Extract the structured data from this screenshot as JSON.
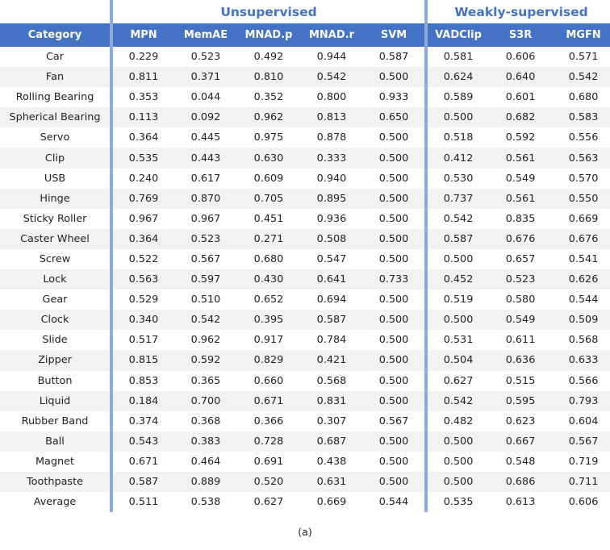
{
  "table": {
    "groups": {
      "unsupervised": "Unsupervised",
      "weakly": "Weakly-supervised"
    },
    "columns": [
      "Category",
      "MPN",
      "MemAE",
      "MNAD.p",
      "MNAD.r",
      "SVM",
      "VADClip",
      "S3R",
      "MGFN"
    ],
    "rows": [
      [
        "Car",
        "0.229",
        "0.523",
        "0.492",
        "0.944",
        "0.587",
        "0.581",
        "0.606",
        "0.571"
      ],
      [
        "Fan",
        "0.811",
        "0.371",
        "0.810",
        "0.542",
        "0.500",
        "0.624",
        "0.640",
        "0.542"
      ],
      [
        "Rolling Bearing",
        "0.353",
        "0.044",
        "0.352",
        "0.800",
        "0.933",
        "0.589",
        "0.601",
        "0.680"
      ],
      [
        "Spherical Bearing",
        "0.113",
        "0.092",
        "0.962",
        "0.813",
        "0.650",
        "0.500",
        "0.682",
        "0.583"
      ],
      [
        "Servo",
        "0.364",
        "0.445",
        "0.975",
        "0.878",
        "0.500",
        "0.518",
        "0.592",
        "0.556"
      ],
      [
        "Clip",
        "0.535",
        "0.443",
        "0.630",
        "0.333",
        "0.500",
        "0.412",
        "0.561",
        "0.563"
      ],
      [
        "USB",
        "0.240",
        "0.617",
        "0.609",
        "0.940",
        "0.500",
        "0.530",
        "0.549",
        "0.570"
      ],
      [
        "Hinge",
        "0.769",
        "0.870",
        "0.705",
        "0.895",
        "0.500",
        "0.737",
        "0.561",
        "0.550"
      ],
      [
        "Sticky Roller",
        "0.967",
        "0.967",
        "0.451",
        "0.936",
        "0.500",
        "0.542",
        "0.835",
        "0.669"
      ],
      [
        "Caster Wheel",
        "0.364",
        "0.523",
        "0.271",
        "0.508",
        "0.500",
        "0.587",
        "0.676",
        "0.676"
      ],
      [
        "Screw",
        "0.522",
        "0.567",
        "0.680",
        "0.547",
        "0.500",
        "0.500",
        "0.657",
        "0.541"
      ],
      [
        "Lock",
        "0.563",
        "0.597",
        "0.430",
        "0.641",
        "0.733",
        "0.452",
        "0.523",
        "0.626"
      ],
      [
        "Gear",
        "0.529",
        "0.510",
        "0.652",
        "0.694",
        "0.500",
        "0.519",
        "0.580",
        "0.544"
      ],
      [
        "Clock",
        "0.340",
        "0.542",
        "0.395",
        "0.587",
        "0.500",
        "0.500",
        "0.549",
        "0.509"
      ],
      [
        "Slide",
        "0.517",
        "0.962",
        "0.917",
        "0.784",
        "0.500",
        "0.531",
        "0.611",
        "0.568"
      ],
      [
        "Zipper",
        "0.815",
        "0.592",
        "0.829",
        "0.421",
        "0.500",
        "0.504",
        "0.636",
        "0.633"
      ],
      [
        "Button",
        "0.853",
        "0.365",
        "0.660",
        "0.568",
        "0.500",
        "0.627",
        "0.515",
        "0.566"
      ],
      [
        "Liquid",
        "0.184",
        "0.700",
        "0.671",
        "0.831",
        "0.500",
        "0.542",
        "0.595",
        "0.793"
      ],
      [
        "Rubber Band",
        "0.374",
        "0.368",
        "0.366",
        "0.307",
        "0.567",
        "0.482",
        "0.623",
        "0.604"
      ],
      [
        "Ball",
        "0.543",
        "0.383",
        "0.728",
        "0.687",
        "0.500",
        "0.500",
        "0.667",
        "0.567"
      ],
      [
        "Magnet",
        "0.671",
        "0.464",
        "0.691",
        "0.438",
        "0.500",
        "0.500",
        "0.548",
        "0.719"
      ],
      [
        "Toothpaste",
        "0.587",
        "0.889",
        "0.520",
        "0.631",
        "0.500",
        "0.500",
        "0.686",
        "0.711"
      ],
      [
        "Average",
        "0.511",
        "0.538",
        "0.627",
        "0.669",
        "0.544",
        "0.535",
        "0.613",
        "0.606"
      ]
    ]
  },
  "caption": "(a)",
  "colors": {
    "header_bg": "#4472c4",
    "group_text": "#4472c4",
    "separator": "#8ea9db",
    "alt_row": "#f2f2f2"
  }
}
